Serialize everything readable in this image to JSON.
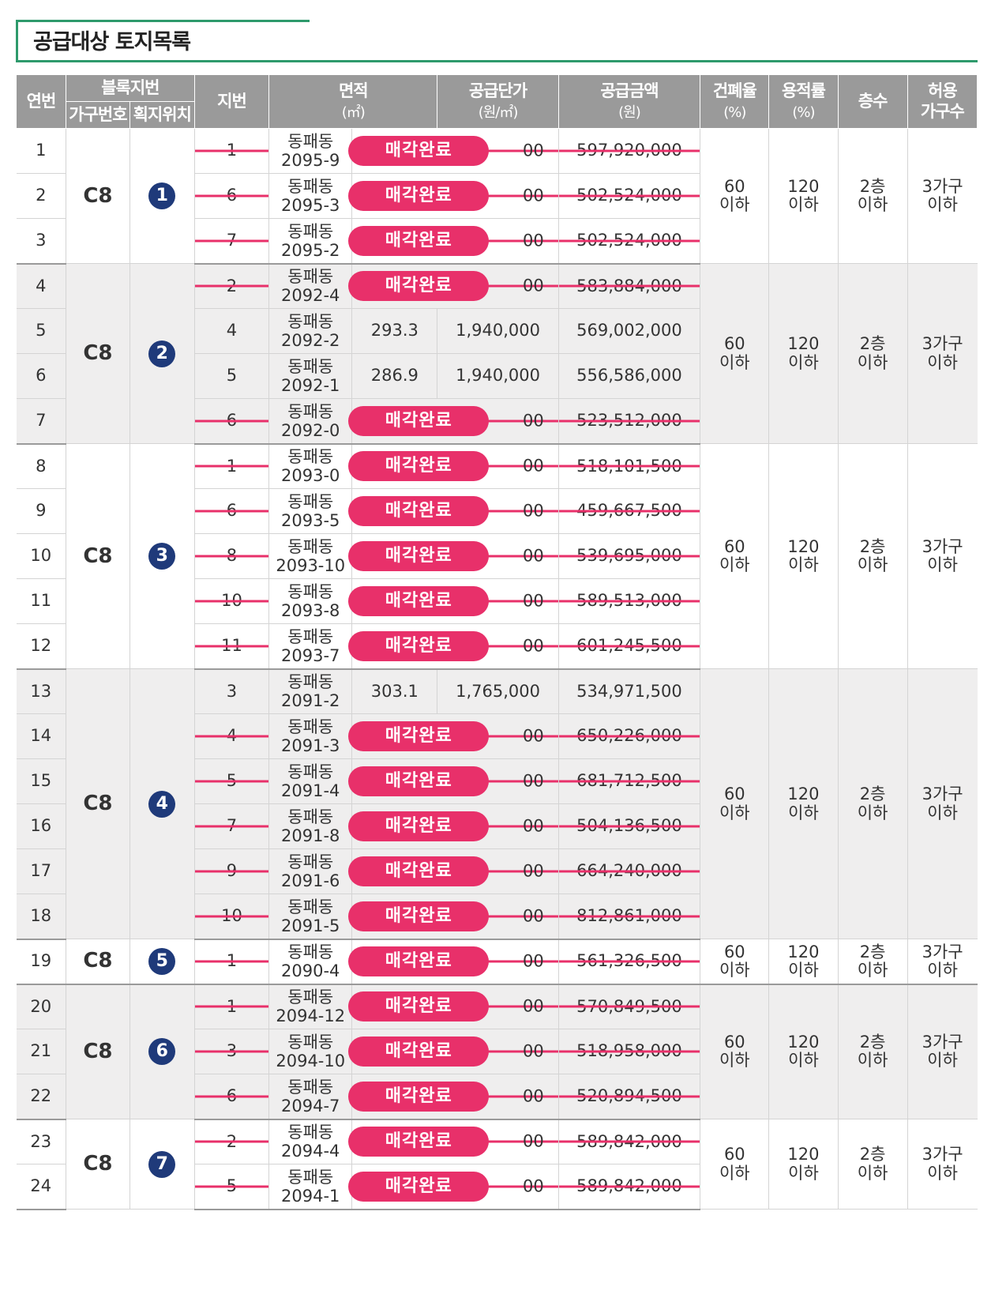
{
  "title": "공급대상 토지목록",
  "header": {
    "no": "연번",
    "block_group": "블록지번",
    "household_no": "가구번호",
    "lot_position": "획지위치",
    "jibun": "지번",
    "area": "면적",
    "area_unit": "(㎡)",
    "unit_price": "공급단가",
    "unit_price_unit": "(원/㎡)",
    "amount": "공급금액",
    "amount_unit": "(원)",
    "coverage": "건폐율",
    "coverage_unit": "(%)",
    "far": "용적률",
    "far_unit": "(%)",
    "floors": "층수",
    "households_1": "허용",
    "households_2": "가구수"
  },
  "sold_label": "매각완료",
  "groups": [
    {
      "block": "C8",
      "household": "1",
      "coverage": "60",
      "coverage_s": "이하",
      "far": "120",
      "far_s": "이하",
      "floors": "2층",
      "floors_s": "이하",
      "hh": "3가구",
      "hh_s": "이하",
      "rows": [
        {
          "no": "1",
          "lot": "1",
          "dong": "동패동",
          "jibun": "2095-9",
          "area": "",
          "price": "00",
          "amount": "597,920,000",
          "sold": true
        },
        {
          "no": "2",
          "lot": "6",
          "dong": "동패동",
          "jibun": "2095-3",
          "area": "",
          "price": "00",
          "amount": "502,524,000",
          "sold": true
        },
        {
          "no": "3",
          "lot": "7",
          "dong": "동패동",
          "jibun": "2095-2",
          "area": "",
          "price": "00",
          "amount": "502,524,000",
          "sold": true
        }
      ]
    },
    {
      "block": "C8",
      "household": "2",
      "coverage": "60",
      "coverage_s": "이하",
      "far": "120",
      "far_s": "이하",
      "floors": "2층",
      "floors_s": "이하",
      "hh": "3가구",
      "hh_s": "이하",
      "rows": [
        {
          "no": "4",
          "lot": "2",
          "dong": "동패동",
          "jibun": "2092-4",
          "area": "",
          "price": "00",
          "amount": "583,884,000",
          "sold": true
        },
        {
          "no": "5",
          "lot": "4",
          "dong": "동패동",
          "jibun": "2092-2",
          "area": "293.3",
          "price": "1,940,000",
          "amount": "569,002,000",
          "sold": false
        },
        {
          "no": "6",
          "lot": "5",
          "dong": "동패동",
          "jibun": "2092-1",
          "area": "286.9",
          "price": "1,940,000",
          "amount": "556,586,000",
          "sold": false
        },
        {
          "no": "7",
          "lot": "6",
          "dong": "동패동",
          "jibun": "2092-0",
          "area": "",
          "price": "00",
          "amount": "523,512,000",
          "sold": true
        }
      ]
    },
    {
      "block": "C8",
      "household": "3",
      "coverage": "60",
      "coverage_s": "이하",
      "far": "120",
      "far_s": "이하",
      "floors": "2층",
      "floors_s": "이하",
      "hh": "3가구",
      "hh_s": "이하",
      "rows": [
        {
          "no": "8",
          "lot": "1",
          "dong": "동패동",
          "jibun": "2093-0",
          "area": "",
          "price": "00",
          "amount": "518,101,500",
          "sold": true
        },
        {
          "no": "9",
          "lot": "6",
          "dong": "동패동",
          "jibun": "2093-5",
          "area": "",
          "price": "00",
          "amount": "459,667,500",
          "sold": true
        },
        {
          "no": "10",
          "lot": "8",
          "dong": "동패동",
          "jibun": "2093-10",
          "area": "",
          "price": "00",
          "amount": "539,695,000",
          "sold": true
        },
        {
          "no": "11",
          "lot": "10",
          "dong": "동패동",
          "jibun": "2093-8",
          "area": "",
          "price": "00",
          "amount": "589,513,000",
          "sold": true
        },
        {
          "no": "12",
          "lot": "11",
          "dong": "동패동",
          "jibun": "2093-7",
          "area": "",
          "price": "00",
          "amount": "601,245,500",
          "sold": true
        }
      ]
    },
    {
      "block": "C8",
      "household": "4",
      "coverage": "60",
      "coverage_s": "이하",
      "far": "120",
      "far_s": "이하",
      "floors": "2층",
      "floors_s": "이하",
      "hh": "3가구",
      "hh_s": "이하",
      "rows": [
        {
          "no": "13",
          "lot": "3",
          "dong": "동패동",
          "jibun": "2091-2",
          "area": "303.1",
          "price": "1,765,000",
          "amount": "534,971,500",
          "sold": false
        },
        {
          "no": "14",
          "lot": "4",
          "dong": "동패동",
          "jibun": "2091-3",
          "area": "",
          "price": "00",
          "amount": "650,226,000",
          "sold": true
        },
        {
          "no": "15",
          "lot": "5",
          "dong": "동패동",
          "jibun": "2091-4",
          "area": "",
          "price": "00",
          "amount": "681,712,500",
          "sold": true
        },
        {
          "no": "16",
          "lot": "7",
          "dong": "동패동",
          "jibun": "2091-8",
          "area": "",
          "price": "00",
          "amount": "504,136,500",
          "sold": true
        },
        {
          "no": "17",
          "lot": "9",
          "dong": "동패동",
          "jibun": "2091-6",
          "area": "",
          "price": "00",
          "amount": "664,240,000",
          "sold": true
        },
        {
          "no": "18",
          "lot": "10",
          "dong": "동패동",
          "jibun": "2091-5",
          "area": "",
          "price": "00",
          "amount": "812,861,000",
          "sold": true
        }
      ]
    },
    {
      "block": "C8",
      "household": "5",
      "coverage": "60",
      "coverage_s": "이하",
      "far": "120",
      "far_s": "이하",
      "floors": "2층",
      "floors_s": "이하",
      "hh": "3가구",
      "hh_s": "이하",
      "rows": [
        {
          "no": "19",
          "lot": "1",
          "dong": "동패동",
          "jibun": "2090-4",
          "area": "",
          "price": "00",
          "amount": "561,326,500",
          "sold": true
        }
      ]
    },
    {
      "block": "C8",
      "household": "6",
      "coverage": "60",
      "coverage_s": "이하",
      "far": "120",
      "far_s": "이하",
      "floors": "2층",
      "floors_s": "이하",
      "hh": "3가구",
      "hh_s": "이하",
      "rows": [
        {
          "no": "20",
          "lot": "1",
          "dong": "동패동",
          "jibun": "2094-12",
          "area": "",
          "price": "00",
          "amount": "570,849,500",
          "sold": true
        },
        {
          "no": "21",
          "lot": "3",
          "dong": "동패동",
          "jibun": "2094-10",
          "area": "",
          "price": "00",
          "amount": "518,958,000",
          "sold": true
        },
        {
          "no": "22",
          "lot": "6",
          "dong": "동패동",
          "jibun": "2094-7",
          "area": "",
          "price": "00",
          "amount": "520,894,500",
          "sold": true
        }
      ]
    },
    {
      "block": "C8",
      "household": "7",
      "coverage": "60",
      "coverage_s": "이하",
      "far": "120",
      "far_s": "이하",
      "floors": "2층",
      "floors_s": "이하",
      "hh": "3가구",
      "hh_s": "이하",
      "rows": [
        {
          "no": "23",
          "lot": "2",
          "dong": "동패동",
          "jibun": "2094-4",
          "area": "",
          "price": "00",
          "amount": "589,842,000",
          "sold": true
        },
        {
          "no": "24",
          "lot": "5",
          "dong": "동패동",
          "jibun": "2094-1",
          "area": "",
          "price": "00",
          "amount": "589,842,000",
          "sold": true
        }
      ]
    }
  ]
}
